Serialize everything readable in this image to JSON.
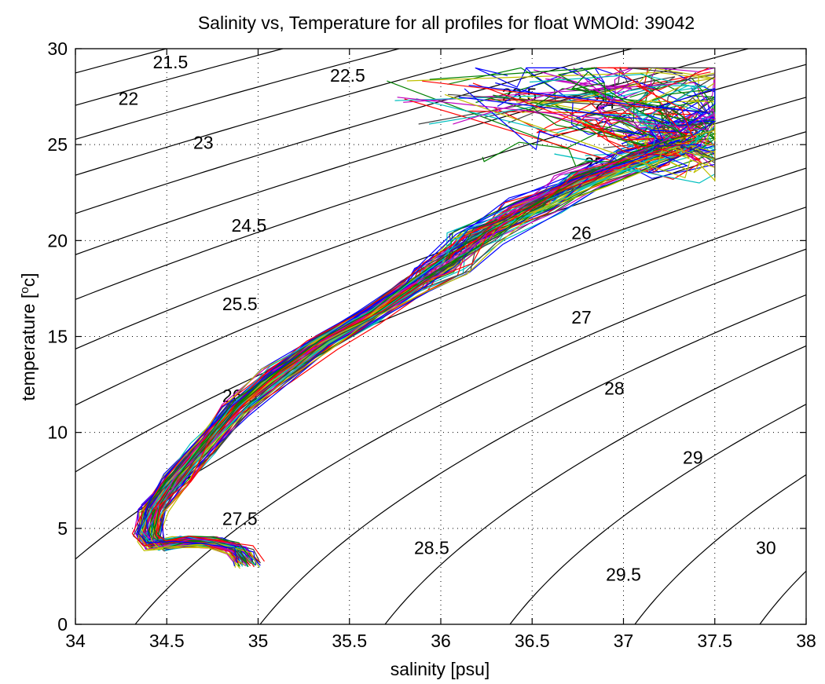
{
  "chart_data": {
    "type": "line",
    "title": "Salinity vs, Temperature for all profiles for float WMOId: 39042",
    "xlabel": "salinity [psu]",
    "ylabel_main": "temperature [",
    "ylabel_sup": "o",
    "ylabel_tail": "c]",
    "xlim": [
      34,
      38
    ],
    "ylim": [
      0,
      30
    ],
    "x_ticks": [
      "34",
      "34.5",
      "35",
      "35.5",
      "36",
      "36.5",
      "37",
      "37.5",
      "38"
    ],
    "y_ticks": [
      "0",
      "5",
      "10",
      "15",
      "20",
      "25",
      "30"
    ],
    "grid": true,
    "density_contours": {
      "levels": [
        21.5,
        22,
        22.5,
        23,
        23.5,
        24,
        24.5,
        25,
        25.5,
        26,
        26.5,
        27,
        27.5,
        28,
        28.5,
        29,
        29.5,
        30
      ],
      "labels": [
        {
          "text": "21.5",
          "s": 34.52,
          "t": 29.3
        },
        {
          "text": "22",
          "s": 34.29,
          "t": 27.4
        },
        {
          "text": "22.5",
          "s": 35.49,
          "t": 28.6
        },
        {
          "text": "23",
          "s": 34.7,
          "t": 25.1
        },
        {
          "text": "23.5",
          "s": 36.43,
          "t": 27.6
        },
        {
          "text": "24",
          "s": 36.9,
          "t": 27.2
        },
        {
          "text": "24.5",
          "s": 34.95,
          "t": 20.8
        },
        {
          "text": "25",
          "s": 36.84,
          "t": 24.0
        },
        {
          "text": "25.5",
          "s": 34.9,
          "t": 16.7
        },
        {
          "text": "26",
          "s": 36.77,
          "t": 20.4
        },
        {
          "text": "26.5",
          "s": 34.9,
          "t": 11.9
        },
        {
          "text": "27",
          "s": 36.77,
          "t": 16.0
        },
        {
          "text": "27.5",
          "s": 34.9,
          "t": 5.5
        },
        {
          "text": "28",
          "s": 36.95,
          "t": 12.3
        },
        {
          "text": "28.5",
          "s": 35.95,
          "t": 4.0
        },
        {
          "text": "29",
          "s": 37.38,
          "t": 8.7
        },
        {
          "text": "29.5",
          "s": 37.0,
          "t": 2.6
        },
        {
          "text": "30",
          "s": 37.78,
          "t": 4.0
        }
      ]
    },
    "series_band": {
      "profile_count": 80,
      "colors": [
        "#0000ff",
        "#008000",
        "#ff0000",
        "#00bfbf",
        "#bf00bf",
        "#bfbf00",
        "#404040"
      ],
      "core_path": [
        [
          34.95,
          3.2
        ],
        [
          34.9,
          3.9
        ],
        [
          34.75,
          4.3
        ],
        [
          34.6,
          4.3
        ],
        [
          34.45,
          4.1
        ],
        [
          34.4,
          4.6
        ],
        [
          34.43,
          6.0
        ],
        [
          34.55,
          7.5
        ],
        [
          34.7,
          9.2
        ],
        [
          34.88,
          11.2
        ],
        [
          35.1,
          13.0
        ],
        [
          35.35,
          14.6
        ],
        [
          35.6,
          16.0
        ],
        [
          35.85,
          17.6
        ],
        [
          36.0,
          18.6
        ],
        [
          36.2,
          20.2
        ],
        [
          36.5,
          21.8
        ],
        [
          36.8,
          23.2
        ],
        [
          37.1,
          24.3
        ],
        [
          37.3,
          25.1
        ]
      ],
      "warm_region": {
        "s_range": [
          35.5,
          37.5
        ],
        "t_range": [
          23.0,
          29.0
        ]
      }
    }
  }
}
